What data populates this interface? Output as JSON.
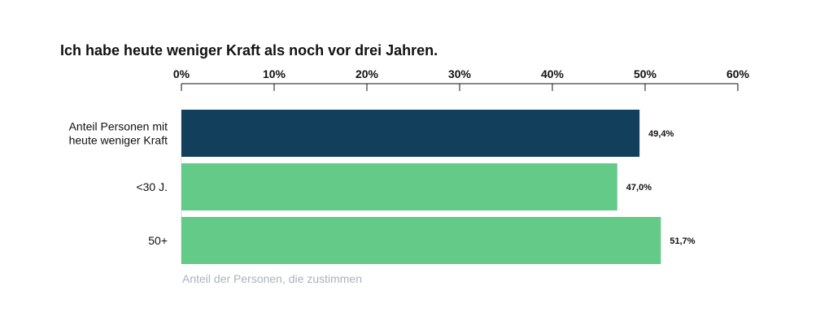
{
  "chart_data": {
    "type": "bar",
    "orientation": "horizontal",
    "title": "Ich habe heute weniger Kraft als noch vor drei Jahren.",
    "xlabel": "Anteil der Personen, die zustimmen",
    "ylabel": "",
    "xlim": [
      0,
      60
    ],
    "tick_labels": [
      "0%",
      "10%",
      "20%",
      "30%",
      "40%",
      "50%",
      "60%"
    ],
    "tick_values": [
      0,
      10,
      20,
      30,
      40,
      50,
      60
    ],
    "categories": [
      [
        "Anteil Personen mit",
        "heute weniger Kraft"
      ],
      [
        "<30 J."
      ],
      [
        "50+"
      ]
    ],
    "values": [
      49.4,
      47.0,
      51.7
    ],
    "value_labels": [
      "49,4%",
      "47,0%",
      "51,7%"
    ],
    "colors": [
      "#12405c",
      "#63cb87",
      "#63cb87"
    ],
    "axis_color": "#111111",
    "grid": false,
    "legend": "none"
  }
}
